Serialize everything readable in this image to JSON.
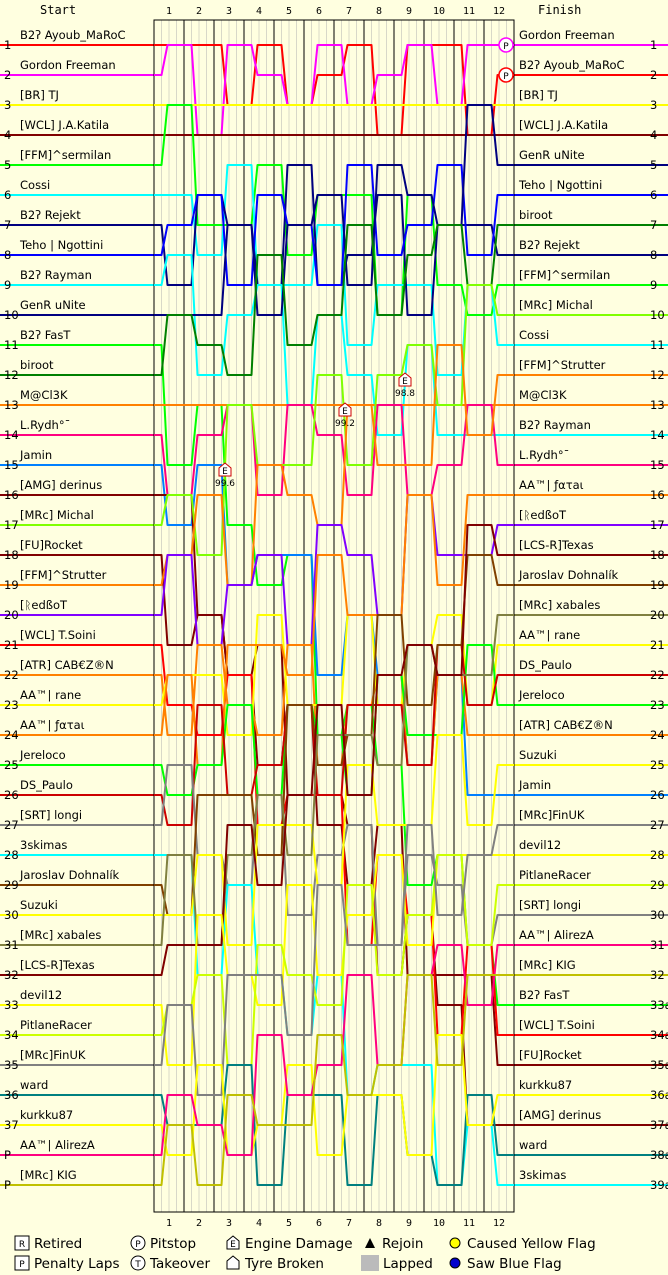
{
  "chart_data": {
    "type": "line",
    "header": {
      "start": "Start",
      "finish": "Finish"
    },
    "laps": [
      1,
      2,
      3,
      4,
      5,
      6,
      7,
      8,
      9,
      10,
      11,
      12
    ],
    "start_positions": [
      "1",
      "2",
      "3",
      "4",
      "5",
      "6",
      "7",
      "8",
      "9",
      "10",
      "11",
      "12",
      "13",
      "14",
      "15",
      "16",
      "17",
      "18",
      "19",
      "20",
      "21",
      "22",
      "23",
      "24",
      "25",
      "26",
      "27",
      "28",
      "29",
      "30",
      "31",
      "32",
      "33",
      "34",
      "35",
      "36",
      "37",
      "P",
      "P"
    ],
    "finish_positions": [
      "1",
      "2",
      "3",
      "4",
      "5",
      "6",
      "7",
      "8",
      "9",
      "10",
      "11",
      "12",
      "13",
      "14",
      "15",
      "16",
      "17",
      "18",
      "19",
      "20",
      "21",
      "22",
      "23",
      "24",
      "25",
      "26",
      "27",
      "28",
      "29",
      "30",
      "31",
      "32",
      "33a",
      "34a",
      "35a",
      "36a",
      "37a",
      "38a",
      "39a"
    ],
    "start_names": [
      "B2ʔ Ayoub_MaRoC",
      "Gordon Freeman",
      "[BR] TJ",
      "[WCL] J.A.Katila",
      "[FFM]^sermilan",
      "Cossi",
      "B2ʔ Rejekt",
      "Teho | Ngottini",
      "B2ʔ Rayman",
      "GenR uNite",
      "B2ʔ FasT",
      "biroot",
      "M@Cl3K",
      "L.Rydh°¯",
      "Jamin",
      "[AMG] derinus",
      "[MRc] Michal",
      "[FU]Rocket",
      "[FFM]^Strutter",
      "[ᚱedßoT",
      "[WCL] T.Soini",
      "[ATR] CAB€Z®N",
      "AA™| rane",
      "AA™| ƒατaι",
      "Jereloco",
      "DS_Paulo",
      "[SRT] longi",
      "3skimas",
      "Jaroslav Dohnalík",
      "Suzuki",
      "[MRc] xabales",
      "[LCS-R]Texas",
      "devil12",
      "PitlaneRacer",
      "[MRc]FinUK",
      "ward",
      "kurkku87",
      "AA™| AlirezA",
      "[MRc] KIG"
    ],
    "finish_names": [
      "Gordon Freeman",
      "B2ʔ Ayoub_MaRoC",
      "[BR] TJ",
      "[WCL] J.A.Katila",
      "GenR uNite",
      "Teho | Ngottini",
      "biroot",
      "B2ʔ Rejekt",
      "[FFM]^sermilan",
      "[MRc] Michal",
      "Cossi",
      "[FFM]^Strutter",
      "M@Cl3K",
      "B2ʔ Rayman",
      "L.Rydh°¯",
      "AA™| ƒατaι",
      "[ᚱedßoT",
      "[LCS-R]Texas",
      "Jaroslav Dohnalík",
      "[MRc] xabales",
      "AA™| rane",
      "DS_Paulo",
      "Jereloco",
      "[ATR] CAB€Z®N",
      "Suzuki",
      "Jamin",
      "[MRc]FinUK",
      "devil12",
      "PitlaneRacer",
      "[SRT] longi",
      "AA™| AlirezA",
      "[MRc] KIG",
      "B2ʔ FasT",
      "[WCL] T.Soini",
      "[FU]Rocket",
      "kurkku87",
      "[AMG] derinus",
      "ward",
      "3skimas"
    ],
    "colors": [
      "#ff0000",
      "#ff00ff",
      "#ffff00",
      "#800000",
      "#00ff00",
      "#00ffff",
      "#000080",
      "#0000ff",
      "#00ffff",
      "#000080",
      "#00ff00",
      "#008000",
      "#ff8000",
      "#ff0080",
      "#0080ff",
      "#800000",
      "#80ff00",
      "#800000",
      "#ff8000",
      "#8000ff",
      "#ff0000",
      "#ff8000",
      "#ffff00",
      "#ff8000",
      "#00ff00",
      "#cc0000",
      "#808080",
      "#00ffff",
      "#804000",
      "#ffff00",
      "#808040",
      "#800000",
      "#ffff00",
      "#ccff00",
      "#808080",
      "#008080",
      "#ffff00",
      "#ff0080",
      "#c0c000"
    ],
    "traces": [
      {
        "from": 1,
        "to": 2
      },
      {
        "from": 2,
        "to": 1
      },
      {
        "from": 3,
        "to": 3
      },
      {
        "from": 4,
        "to": 4
      },
      {
        "from": 5,
        "to": 9
      },
      {
        "from": 6,
        "to": 11
      },
      {
        "from": 7,
        "to": 8
      },
      {
        "from": 8,
        "to": 6
      },
      {
        "from": 9,
        "to": 14
      },
      {
        "from": 10,
        "to": 5
      },
      {
        "from": 11,
        "to": 33
      },
      {
        "from": 12,
        "to": 7
      },
      {
        "from": 13,
        "to": 13
      },
      {
        "from": 14,
        "to": 15
      },
      {
        "from": 15,
        "to": 26
      },
      {
        "from": 16,
        "to": 37
      },
      {
        "from": 17,
        "to": 10
      },
      {
        "from": 18,
        "to": 35
      },
      {
        "from": 19,
        "to": 12
      },
      {
        "from": 20,
        "to": 17
      },
      {
        "from": 21,
        "to": 34
      },
      {
        "from": 22,
        "to": 24
      },
      {
        "from": 23,
        "to": 21
      },
      {
        "from": 24,
        "to": 16
      },
      {
        "from": 25,
        "to": 23
      },
      {
        "from": 26,
        "to": 22
      },
      {
        "from": 27,
        "to": 30
      },
      {
        "from": 28,
        "to": 39
      },
      {
        "from": 29,
        "to": 19
      },
      {
        "from": 30,
        "to": 25
      },
      {
        "from": 31,
        "to": 20
      },
      {
        "from": 32,
        "to": 18
      },
      {
        "from": 33,
        "to": 28
      },
      {
        "from": 34,
        "to": 29
      },
      {
        "from": 35,
        "to": 27
      },
      {
        "from": 36,
        "to": 38
      },
      {
        "from": 37,
        "to": 36
      },
      {
        "from": 38,
        "to": 31
      },
      {
        "from": 39,
        "to": 32
      }
    ],
    "annotations": {
      "engine_damage_labels": [
        "99.6",
        "99.2",
        "98.8"
      ]
    }
  },
  "legend": [
    {
      "icon": "R",
      "label": "Retired"
    },
    {
      "icon": "P",
      "label": "Pitstop"
    },
    {
      "icon": "E",
      "label": "Engine Damage"
    },
    {
      "icon": "▲",
      "label": "Rejoin"
    },
    {
      "icon": "yellow-dot",
      "label": "Caused Yellow Flag"
    },
    {
      "icon": "P",
      "label": "Penalty Laps"
    },
    {
      "icon": "T",
      "label": "Takeover"
    },
    {
      "icon": "tyre",
      "label": "Tyre Broken"
    },
    {
      "icon": "lapped",
      "label": "Lapped"
    },
    {
      "icon": "blue-dot",
      "label": "Saw Blue Flag"
    }
  ]
}
